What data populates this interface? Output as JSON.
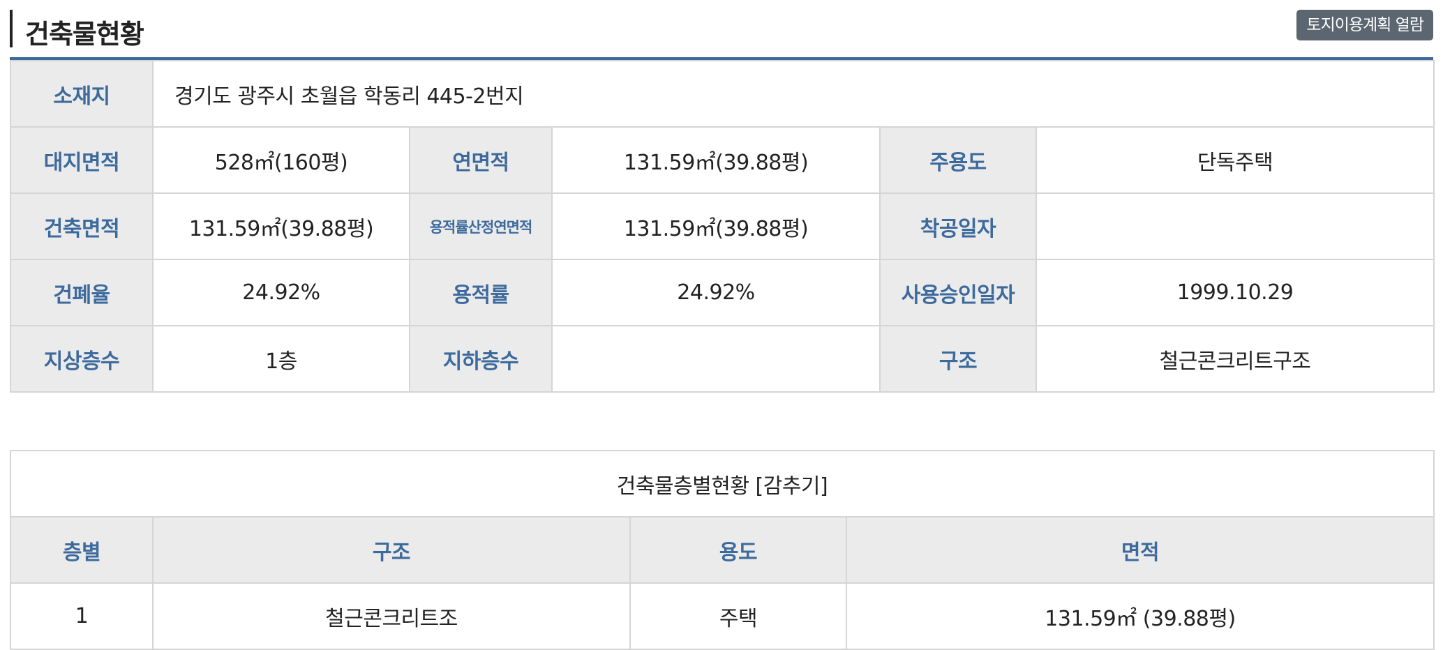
{
  "header": {
    "title": "건축물현황",
    "land_plan_button": "토지이용계획 열람"
  },
  "info": {
    "location_label": "소재지",
    "location_value": "경기도 광주시 초월읍 학동리 445-2번지",
    "site_area_label": "대지면적",
    "site_area_value": "528㎡(160평)",
    "floor_area_label": "연면적",
    "floor_area_value": "131.59㎡(39.88평)",
    "main_use_label": "주용도",
    "main_use_value": "단독주택",
    "building_area_label": "건축면적",
    "building_area_value": "131.59㎡(39.88평)",
    "far_floor_area_label": "용적률산정연면적",
    "far_floor_area_value": "131.59㎡(39.88평)",
    "start_date_label": "착공일자",
    "start_date_value": "",
    "coverage_label": "건폐율",
    "coverage_value": "24.92%",
    "far_label": "용적률",
    "far_value": "24.92%",
    "approval_date_label": "사용승인일자",
    "approval_date_value": "1999.10.29",
    "above_floors_label": "지상층수",
    "above_floors_value": "1층",
    "below_floors_label": "지하층수",
    "below_floors_value": "",
    "structure_label": "구조",
    "structure_value": "철근콘크리트구조"
  },
  "floors": {
    "toggle_text": "건축물층별현황 [감추기]",
    "headers": [
      "층별",
      "구조",
      "용도",
      "면적"
    ],
    "rows": [
      {
        "floor": "1",
        "structure": "철근콘크리트조",
        "use": "주택",
        "area": "131.59㎡ (39.88평)"
      }
    ]
  },
  "colors": {
    "label_text": "#3d6a9c",
    "label_bg": "#ebebeb",
    "top_rule": "#3d6a9c",
    "button_bg": "#5b6670"
  }
}
